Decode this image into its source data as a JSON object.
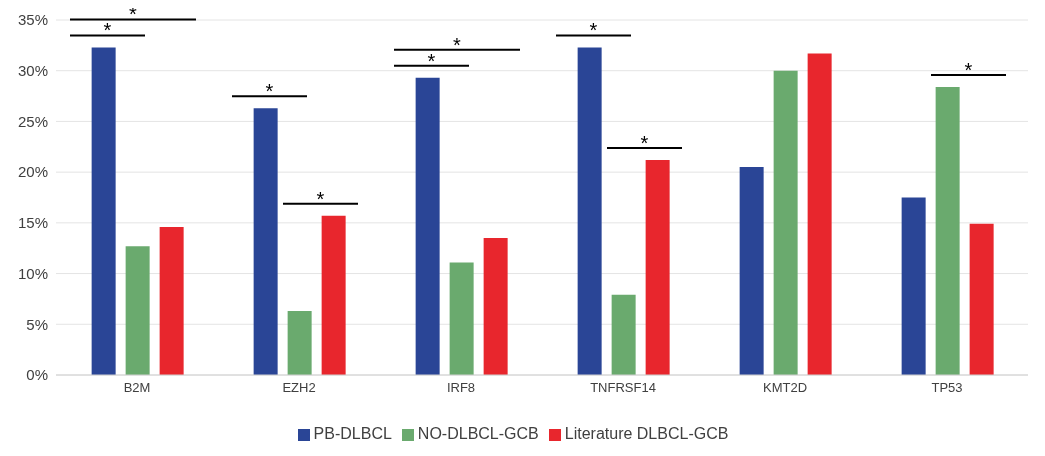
{
  "chart_data": {
    "type": "bar",
    "categories": [
      "B2M",
      "EZH2",
      "IRF8",
      "TNFRSF14",
      "KMT2D",
      "TP53"
    ],
    "series": [
      {
        "name": "PB-DLBCL",
        "color": "#2a4596",
        "values": [
          32.3,
          26.3,
          29.3,
          32.3,
          20.5,
          17.5
        ]
      },
      {
        "name": "NO-DLBCL-GCB",
        "color": "#6aaa6e",
        "values": [
          12.7,
          6.3,
          11.1,
          7.9,
          30.0,
          28.4
        ]
      },
      {
        "name": "Literature DLBCL-GCB",
        "color": "#e8262d",
        "values": [
          14.6,
          15.7,
          13.5,
          21.2,
          31.7,
          14.9
        ]
      }
    ],
    "ylim": [
      0,
      35
    ],
    "yticks": [
      {
        "value": 0,
        "label": "0%"
      },
      {
        "value": 5,
        "label": "5%"
      },
      {
        "value": 10,
        "label": "10%"
      },
      {
        "value": 15,
        "label": "15%"
      },
      {
        "value": 20,
        "label": "20%"
      },
      {
        "value": 25,
        "label": "25%"
      },
      {
        "value": 30,
        "label": "30%"
      },
      {
        "value": 35,
        "label": "35%"
      }
    ],
    "grid": "y",
    "legend": "bottom",
    "annotations": [
      "*",
      "*",
      "*",
      "*",
      "*",
      "*",
      "*",
      "*",
      "*"
    ]
  }
}
